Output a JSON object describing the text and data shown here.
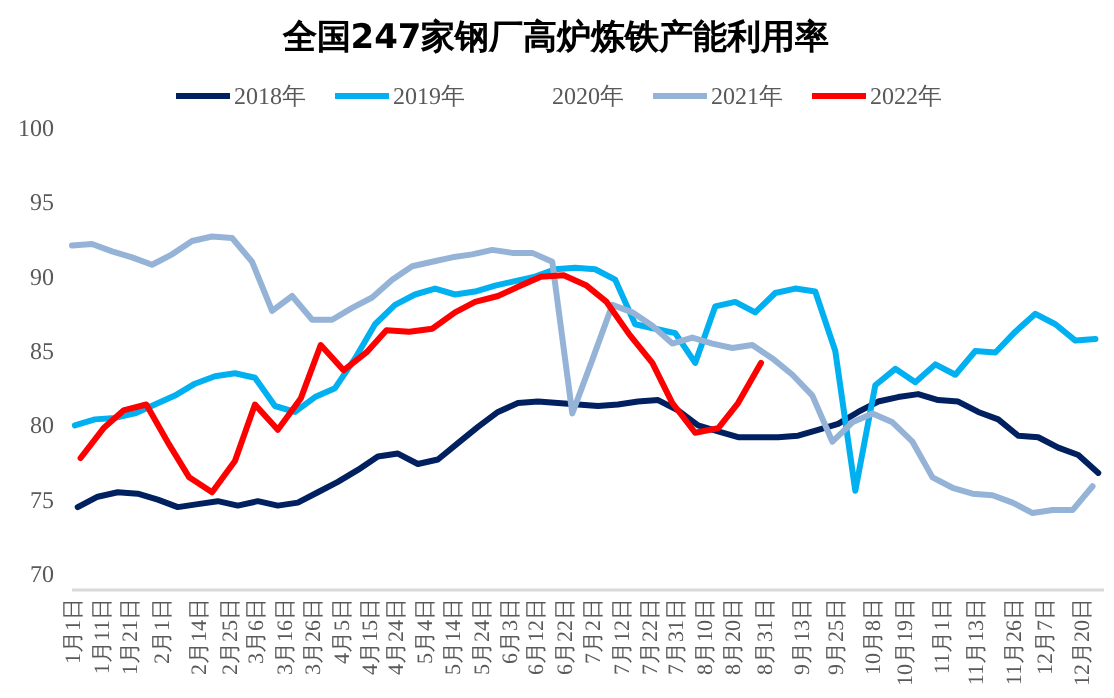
{
  "chart_data": {
    "type": "line",
    "title": "全国247家钢厂高炉炼铁产能利用率",
    "legend": "top",
    "xlim": [
      "--01-01",
      "--12-28"
    ],
    "ylim": [
      70,
      100
    ],
    "yticks": [
      70,
      75,
      80,
      85,
      90,
      95,
      100
    ],
    "xticks": [
      {
        "value": "--01-01",
        "label": "1月1日"
      },
      {
        "value": "--01-11",
        "label": "1月11日"
      },
      {
        "value": "--01-21",
        "label": "1月21日"
      },
      {
        "value": "--02-01",
        "label": "2月1日"
      },
      {
        "value": "--02-14",
        "label": "2月14日"
      },
      {
        "value": "--02-25",
        "label": "2月25日"
      },
      {
        "value": "--03-06",
        "label": "3月6日"
      },
      {
        "value": "--03-16",
        "label": "3月16日"
      },
      {
        "value": "--03-26",
        "label": "3月26日"
      },
      {
        "value": "--04-05",
        "label": "4月5日"
      },
      {
        "value": "--04-15",
        "label": "4月15日"
      },
      {
        "value": "--04-24",
        "label": "4月24日"
      },
      {
        "value": "--05-04",
        "label": "5月4日"
      },
      {
        "value": "--05-14",
        "label": "5月14日"
      },
      {
        "value": "--05-24",
        "label": "5月24日"
      },
      {
        "value": "--06-03",
        "label": "6月3日"
      },
      {
        "value": "--06-12",
        "label": "6月12日"
      },
      {
        "value": "--06-22",
        "label": "6月22日"
      },
      {
        "value": "--07-02",
        "label": "7月2日"
      },
      {
        "value": "--07-12",
        "label": "7月12日"
      },
      {
        "value": "--07-22",
        "label": "7月22日"
      },
      {
        "value": "--07-31",
        "label": "7月31日"
      },
      {
        "value": "--08-10",
        "label": "8月10日"
      },
      {
        "value": "--08-20",
        "label": "8月20日"
      },
      {
        "value": "--08-31",
        "label": "8月31日"
      },
      {
        "value": "--09-13",
        "label": "9月13日"
      },
      {
        "value": "--09-25",
        "label": "9月25日"
      },
      {
        "value": "--10-08",
        "label": "10月8日"
      },
      {
        "value": "--10-19",
        "label": "10月19日"
      },
      {
        "value": "--11-01",
        "label": "11月1日"
      },
      {
        "value": "--11-13",
        "label": "11月13日"
      },
      {
        "value": "--11-26",
        "label": "11月26日"
      },
      {
        "value": "--12-07",
        "label": "12月7日"
      },
      {
        "value": "--12-20",
        "label": "12月20日"
      }
    ],
    "series": [
      {
        "name": "2018年",
        "color": "#002060",
        "x": [
          "--01-03",
          "--01-10",
          "--01-17",
          "--01-24",
          "--01-31",
          "--02-07",
          "--02-14",
          "--02-21",
          "--02-28",
          "--03-07",
          "--03-14",
          "--03-21",
          "--03-28",
          "--04-04",
          "--04-11",
          "--04-18",
          "--04-25",
          "--05-02",
          "--05-09",
          "--05-16",
          "--05-23",
          "--05-30",
          "--06-06",
          "--06-13",
          "--06-20",
          "--06-27",
          "--07-04",
          "--07-11",
          "--07-18",
          "--07-25",
          "--08-01",
          "--08-08",
          "--08-15",
          "--08-22",
          "--08-29",
          "--09-05",
          "--09-12",
          "--09-19",
          "--09-26",
          "--10-03",
          "--10-10",
          "--10-17",
          "--10-24",
          "--10-31",
          "--11-07",
          "--11-14",
          "--11-21",
          "--11-28",
          "--12-05",
          "--12-12",
          "--12-19",
          "--12-26"
        ],
        "values": [
          74.5,
          75.2,
          75.5,
          75.4,
          75.0,
          74.5,
          74.7,
          74.9,
          74.6,
          74.9,
          74.6,
          74.8,
          75.5,
          76.2,
          77.0,
          77.9,
          78.1,
          77.4,
          77.7,
          78.8,
          79.9,
          80.9,
          81.5,
          81.6,
          81.5,
          81.4,
          81.3,
          81.4,
          81.6,
          81.7,
          81.0,
          80.0,
          79.6,
          79.2,
          79.2,
          79.2,
          79.3,
          79.7,
          80.1,
          80.9,
          81.6,
          81.9,
          82.1,
          81.7,
          81.6,
          80.9,
          80.4,
          79.3,
          79.2,
          78.5,
          78.0,
          76.8
        ]
      },
      {
        "name": "2019年",
        "color": "#00b0f0",
        "x": [
          "--01-02",
          "--01-09",
          "--01-16",
          "--01-23",
          "--01-30",
          "--02-06",
          "--02-13",
          "--02-20",
          "--02-27",
          "--03-06",
          "--03-13",
          "--03-20",
          "--03-27",
          "--04-03",
          "--04-10",
          "--04-17",
          "--04-24",
          "--05-01",
          "--05-08",
          "--05-15",
          "--05-22",
          "--05-29",
          "--06-05",
          "--06-12",
          "--06-19",
          "--06-26",
          "--07-03",
          "--07-10",
          "--07-17",
          "--07-24",
          "--07-31",
          "--08-07",
          "--08-14",
          "--08-21",
          "--08-28",
          "--09-04",
          "--09-11",
          "--09-18",
          "--09-25",
          "--10-02",
          "--10-09",
          "--10-16",
          "--10-23",
          "--10-30",
          "--11-06",
          "--11-13",
          "--11-20",
          "--11-27",
          "--12-04",
          "--12-11",
          "--12-18",
          "--12-25"
        ],
        "values": [
          80.0,
          80.4,
          80.5,
          80.8,
          81.4,
          82.0,
          82.8,
          83.3,
          83.5,
          83.2,
          81.3,
          80.9,
          81.9,
          82.5,
          84.5,
          86.8,
          88.1,
          88.8,
          89.2,
          88.8,
          89.0,
          89.4,
          89.7,
          90.0,
          90.5,
          90.6,
          90.5,
          89.8,
          86.8,
          86.5,
          86.2,
          84.2,
          88.0,
          88.3,
          87.6,
          88.9,
          89.2,
          89.0,
          85.0,
          75.6,
          82.7,
          83.8,
          82.9,
          84.1,
          83.4,
          85.0,
          84.9,
          86.3,
          87.5,
          86.8,
          85.7,
          85.8
        ]
      },
      {
        "name": "2020年"
      },
      {
        "name": "2021年",
        "color": "#95b3d7",
        "x": [
          "--01-01",
          "--01-08",
          "--01-15",
          "--01-22",
          "--01-29",
          "--02-05",
          "--02-12",
          "--02-19",
          "--02-26",
          "--03-05",
          "--03-12",
          "--03-19",
          "--03-26",
          "--04-02",
          "--04-09",
          "--04-16",
          "--04-23",
          "--04-30",
          "--05-07",
          "--05-14",
          "--05-21",
          "--05-28",
          "--06-04",
          "--06-11",
          "--06-18",
          "--06-25",
          "--07-02",
          "--07-09",
          "--07-16",
          "--07-23",
          "--07-30",
          "--08-06",
          "--08-13",
          "--08-20",
          "--08-27",
          "--09-03",
          "--09-10",
          "--09-17",
          "--09-24",
          "--10-01",
          "--10-08",
          "--10-15",
          "--10-22",
          "--10-29",
          "--11-05",
          "--11-12",
          "--11-19",
          "--11-26",
          "--12-03",
          "--12-10",
          "--12-17",
          "--12-24"
        ],
        "values": [
          92.1,
          92.2,
          91.7,
          91.3,
          90.8,
          91.5,
          92.4,
          92.7,
          92.6,
          91.0,
          87.7,
          88.7,
          87.1,
          87.1,
          87.9,
          88.6,
          89.8,
          90.7,
          91.0,
          91.3,
          91.5,
          91.8,
          91.6,
          91.6,
          91.0,
          80.8,
          84.4,
          88.1,
          87.6,
          86.7,
          85.5,
          85.9,
          85.5,
          85.2,
          85.4,
          84.5,
          83.4,
          82.0,
          78.9,
          80.2,
          80.8,
          80.2,
          78.9,
          76.5,
          75.8,
          75.4,
          75.3,
          74.8,
          74.1,
          74.3,
          74.3,
          75.9
        ]
      },
      {
        "name": "2022年",
        "color": "#ff0000",
        "x": [
          "--01-04",
          "--01-12",
          "--01-19",
          "--01-27",
          "--02-04",
          "--02-11",
          "--02-19",
          "--02-27",
          "--03-06",
          "--03-14",
          "--03-22",
          "--03-29",
          "--04-06",
          "--04-14",
          "--04-21",
          "--04-29",
          "--05-07",
          "--05-15",
          "--05-22",
          "--05-30",
          "--06-07",
          "--06-14",
          "--06-22",
          "--06-30",
          "--07-07",
          "--07-15",
          "--07-23",
          "--07-30",
          "--08-07",
          "--08-15",
          "--08-22",
          "--08-30"
        ],
        "values": [
          77.8,
          79.8,
          81.0,
          81.4,
          78.7,
          76.5,
          75.5,
          77.6,
          81.4,
          79.7,
          81.8,
          85.4,
          83.7,
          84.9,
          86.4,
          86.3,
          86.5,
          87.6,
          88.3,
          88.7,
          89.4,
          90.0,
          90.1,
          89.4,
          88.3,
          86.1,
          84.2,
          81.5,
          79.5,
          79.8,
          81.5,
          84.2
        ]
      }
    ]
  }
}
